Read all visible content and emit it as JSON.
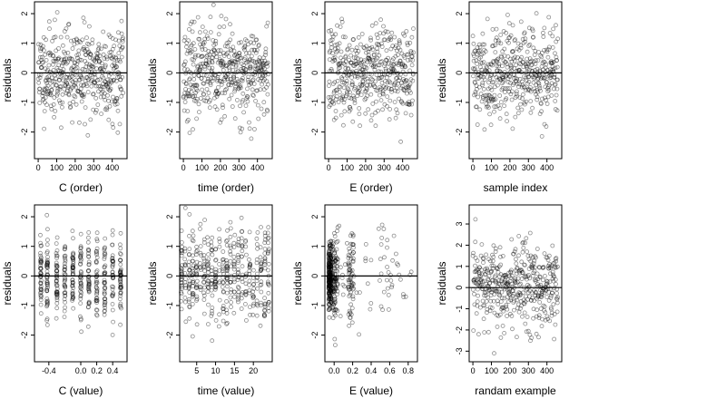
{
  "chart_data": [
    {
      "type": "scatter",
      "id": "p1",
      "xlabel": "C (order)",
      "ylabel": "residuals",
      "xlim": [
        -20,
        480
      ],
      "ylim": [
        -2.9,
        2.4
      ],
      "xticks": [
        0,
        100,
        200,
        300,
        400
      ],
      "yticks": [
        -2,
        -1,
        0,
        1,
        2
      ],
      "hline": 0,
      "pattern": "index",
      "n": 460,
      "seed": 11
    },
    {
      "type": "scatter",
      "id": "p2",
      "xlabel": "time (order)",
      "ylabel": "residuals",
      "xlim": [
        -20,
        480
      ],
      "ylim": [
        -2.9,
        2.4
      ],
      "xticks": [
        0,
        100,
        200,
        300,
        400
      ],
      "yticks": [
        -2,
        -1,
        0,
        1,
        2
      ],
      "hline": 0,
      "pattern": "index",
      "n": 460,
      "seed": 23
    },
    {
      "type": "scatter",
      "id": "p3",
      "xlabel": "E (order)",
      "ylabel": "residuals",
      "xlim": [
        -20,
        480
      ],
      "ylim": [
        -2.9,
        2.4
      ],
      "xticks": [
        0,
        100,
        200,
        300,
        400
      ],
      "yticks": [
        -2,
        -1,
        0,
        1,
        2
      ],
      "hline": 0,
      "pattern": "index",
      "n": 460,
      "seed": 37
    },
    {
      "type": "scatter",
      "id": "p4",
      "xlabel": "sample index",
      "ylabel": "residuals",
      "xlim": [
        -20,
        480
      ],
      "ylim": [
        -2.9,
        2.4
      ],
      "xticks": [
        0,
        100,
        200,
        300,
        400
      ],
      "yticks": [
        -2,
        -1,
        0,
        1,
        2
      ],
      "hline": 0,
      "pattern": "index",
      "n": 460,
      "seed": 41
    },
    {
      "type": "scatter",
      "id": "p5",
      "xlabel": "C (value)",
      "ylabel": "residuals",
      "xlim": [
        -0.58,
        0.58
      ],
      "ylim": [
        -2.9,
        2.4
      ],
      "xticks": [
        -0.4,
        0.0,
        0.2,
        0.4
      ],
      "xticklabels": [
        "-0.4",
        "0.0",
        "0.2",
        "0.4"
      ],
      "yticks": [
        -2,
        -1,
        0,
        1,
        2
      ],
      "hline": 0,
      "pattern": "clusters",
      "centers": [
        -0.5,
        -0.42,
        -0.3,
        -0.2,
        -0.1,
        0,
        0.1,
        0.2,
        0.3,
        0.4,
        0.5
      ],
      "n": 460,
      "seed": 53
    },
    {
      "type": "scatter",
      "id": "p6",
      "xlabel": "time (value)",
      "ylabel": "residuals",
      "xlim": [
        0.5,
        25
      ],
      "ylim": [
        -2.9,
        2.4
      ],
      "xticks": [
        5,
        10,
        15,
        20
      ],
      "yticks": [
        -2,
        -1,
        0,
        1,
        2
      ],
      "hline": 0,
      "pattern": "clusters",
      "centers": [
        1,
        2,
        3,
        4,
        5,
        6,
        7,
        8,
        9,
        10,
        11,
        12,
        13,
        14,
        15,
        16,
        17,
        18,
        19,
        20,
        21,
        22,
        23,
        24
      ],
      "n": 460,
      "seed": 67
    },
    {
      "type": "scatter",
      "id": "p7",
      "xlabel": "E (value)",
      "ylabel": "residuals",
      "xlim": [
        -0.1,
        0.9
      ],
      "ylim": [
        -2.9,
        2.4
      ],
      "xticks": [
        0.0,
        0.2,
        0.4,
        0.6,
        0.8
      ],
      "xticklabels": [
        "0.0",
        "0.2",
        "0.4",
        "0.6",
        "0.8"
      ],
      "yticks": [
        -2,
        -1,
        0,
        1,
        2
      ],
      "hline": 0,
      "pattern": "skew",
      "n": 460,
      "seed": 79
    },
    {
      "type": "scatter",
      "id": "p8",
      "xlabel": "randam example",
      "ylabel": "residuals",
      "xlim": [
        -20,
        480
      ],
      "ylim": [
        -3.5,
        3.9
      ],
      "xticks": [
        0,
        100,
        200,
        300,
        400
      ],
      "yticks": [
        -3,
        -2,
        -1,
        0,
        1,
        2,
        3
      ],
      "hline": 0,
      "pattern": "index",
      "n": 460,
      "seed": 97,
      "sd": 1.05
    }
  ]
}
